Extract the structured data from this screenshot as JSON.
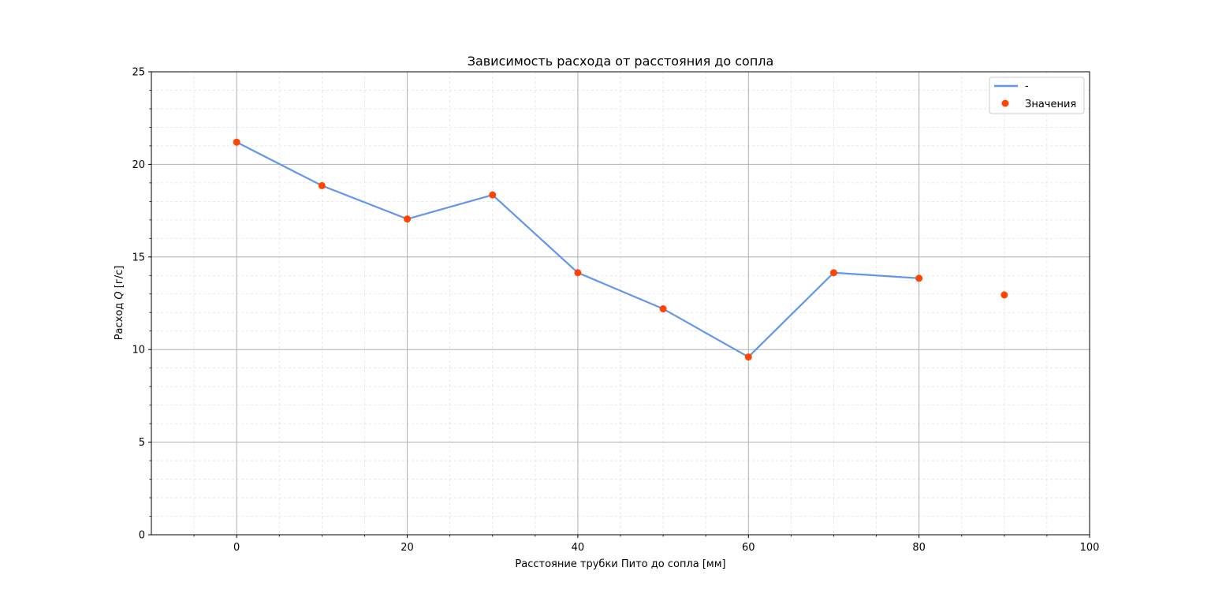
{
  "chart_data": {
    "type": "line",
    "title": "Зависимость расхода от расстояния до сопла",
    "xlabel": "Расстояние трубки Пито до сопла [мм]",
    "ylabel_prefix": "Расход ",
    "ylabel_var": "Q",
    "ylabel_suffix": " [г/с]",
    "xlim": [
      -10,
      100
    ],
    "ylim": [
      0,
      25
    ],
    "x_major_ticks": [
      0,
      20,
      40,
      60,
      80,
      100
    ],
    "x_minor_step": 5,
    "y_major_ticks": [
      0,
      5,
      10,
      15,
      20,
      25
    ],
    "y_minor_step": 1,
    "grid": true,
    "legend_position": "top-right",
    "series": [
      {
        "name": "-",
        "kind": "line",
        "color": "#6495ED",
        "x": [
          0,
          10,
          20,
          30,
          40,
          50,
          60,
          70,
          80
        ],
        "y": [
          21.2,
          18.85,
          17.05,
          18.35,
          14.15,
          12.2,
          9.6,
          14.15,
          13.85
        ]
      },
      {
        "name": "Значения",
        "kind": "scatter",
        "color": "#FF4500",
        "x": [
          0,
          10,
          20,
          30,
          40,
          50,
          60,
          70,
          80,
          90
        ],
        "y": [
          21.2,
          18.85,
          17.05,
          18.35,
          14.15,
          12.2,
          9.6,
          14.15,
          13.85,
          12.95
        ]
      }
    ]
  }
}
